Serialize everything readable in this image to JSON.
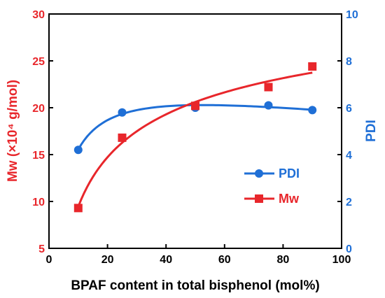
{
  "chart_data": {
    "type": "line",
    "title": "",
    "xlabel": "BPAF content in total bisphenol (mol%)",
    "ylabel_left": "Mw (×10⁴ g/mol)",
    "ylabel_right": "PDI",
    "xlim": [
      0,
      100
    ],
    "ylim_left": [
      5,
      30
    ],
    "ylim_right": [
      0,
      10
    ],
    "x_ticks": [
      "0",
      "20",
      "40",
      "60",
      "80",
      "100"
    ],
    "y_left_ticks": [
      "5",
      "10",
      "15",
      "20",
      "25",
      "30"
    ],
    "y_right_ticks": [
      "0",
      "2",
      "4",
      "6",
      "8",
      "10"
    ],
    "grid": false,
    "legend_position": "center-right",
    "series": [
      {
        "name": "PDI",
        "axis": "right",
        "marker": "circle",
        "color": "#1f6fd6",
        "x": [
          10,
          25,
          50,
          75,
          90
        ],
        "y": [
          4.2,
          5.8,
          6.0,
          6.1,
          5.9
        ]
      },
      {
        "name": "Mw",
        "axis": "left",
        "marker": "square",
        "color": "#e8262b",
        "x": [
          10,
          25,
          50,
          75,
          90
        ],
        "y": [
          9.3,
          16.8,
          20.2,
          22.2,
          24.4
        ]
      }
    ]
  }
}
